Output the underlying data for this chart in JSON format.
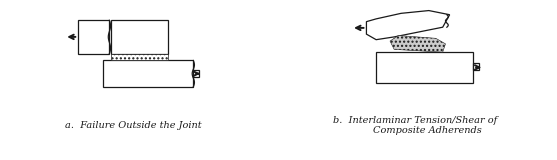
{
  "bg_color": "#ffffff",
  "line_color": "#1a1a1a",
  "label_a": "a.  Failure Outside the Joint",
  "label_b": "b.  Interlaminar Tension/Shear of\n        Composite Adherends",
  "font_size": 7.0,
  "fig_width": 5.57,
  "fig_height": 1.6,
  "dpi": 100
}
